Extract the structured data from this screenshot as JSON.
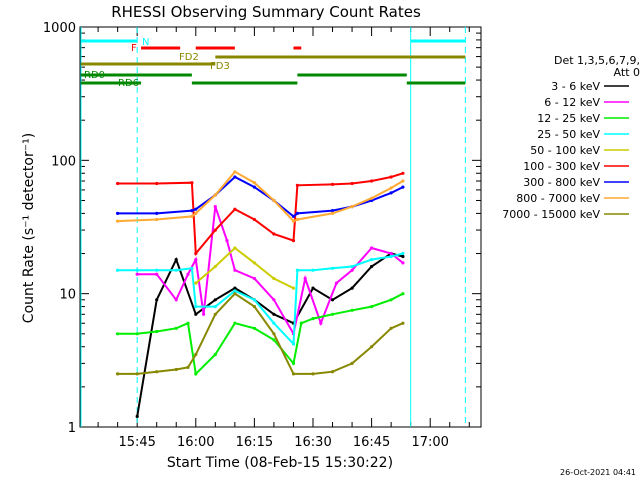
{
  "chart_data": {
    "type": "line",
    "title": "RHESSI Observing Summary Count Rates",
    "xlabel": "Start Time (08-Feb-15 15:30:22)",
    "ylabel": "Count Rate (s⁻¹ detector⁻¹)",
    "yscale": "log",
    "ylim": [
      1,
      1000
    ],
    "xlim": [
      "15:30:22",
      "17:13:00"
    ],
    "x_ticks": [
      "15:45",
      "16:00",
      "16:15",
      "16:30",
      "16:45",
      "17:00"
    ],
    "y_ticks": [
      "1",
      "10",
      "100",
      "1000"
    ],
    "legend_position": "right",
    "legend_header": [
      "Det 1,3,5,6,7,9,",
      "Att 0"
    ],
    "series": [
      {
        "name": "3 - 6 keV",
        "color": "#000000",
        "points": [
          [
            "15:45",
            1.2
          ],
          [
            "15:50",
            9
          ],
          [
            "15:55",
            18
          ],
          [
            "16:00",
            7
          ],
          [
            "16:05",
            9
          ],
          [
            "16:10",
            11
          ],
          [
            "16:15",
            9
          ],
          [
            "16:20",
            7
          ],
          [
            "16:25",
            6
          ],
          [
            "16:30",
            11
          ],
          [
            "16:35",
            9
          ],
          [
            "16:40",
            11
          ],
          [
            "16:45",
            16
          ],
          [
            "16:50",
            20
          ],
          [
            "16:53",
            19
          ]
        ]
      },
      {
        "name": "6 - 12 keV",
        "color": "#ff00ff",
        "points": [
          [
            "15:45",
            14
          ],
          [
            "15:50",
            14
          ],
          [
            "15:55",
            9
          ],
          [
            "15:58",
            14
          ],
          [
            "16:00",
            18
          ],
          [
            "16:02",
            7
          ],
          [
            "16:05",
            45
          ],
          [
            "16:08",
            25
          ],
          [
            "16:10",
            15
          ],
          [
            "16:15",
            13
          ],
          [
            "16:20",
            9
          ],
          [
            "16:25",
            5
          ],
          [
            "16:28",
            13
          ],
          [
            "16:32",
            6
          ],
          [
            "16:36",
            12
          ],
          [
            "16:40",
            15
          ],
          [
            "16:45",
            22
          ],
          [
            "16:50",
            20
          ],
          [
            "16:53",
            17
          ]
        ]
      },
      {
        "name": "12 - 25 keV",
        "color": "#00ee00",
        "points": [
          [
            "15:40",
            5
          ],
          [
            "15:45",
            5
          ],
          [
            "15:50",
            5.2
          ],
          [
            "15:55",
            5.5
          ],
          [
            "15:58",
            6
          ],
          [
            "16:00",
            2.5
          ],
          [
            "16:05",
            3.5
          ],
          [
            "16:10",
            6
          ],
          [
            "16:15",
            5.5
          ],
          [
            "16:20",
            4.5
          ],
          [
            "16:25",
            3
          ],
          [
            "16:27",
            6
          ],
          [
            "16:30",
            6.5
          ],
          [
            "16:35",
            7
          ],
          [
            "16:40",
            7.5
          ],
          [
            "16:45",
            8
          ],
          [
            "16:50",
            9
          ],
          [
            "16:53",
            10
          ]
        ]
      },
      {
        "name": "25 - 50 keV",
        "color": "#00ffff",
        "points": [
          [
            "15:40",
            15
          ],
          [
            "15:45",
            15
          ],
          [
            "15:50",
            15
          ],
          [
            "15:55",
            15
          ],
          [
            "15:59",
            15.5
          ],
          [
            "16:00",
            8
          ],
          [
            "16:05",
            8
          ],
          [
            "16:10",
            10.5
          ],
          [
            "16:15",
            9
          ],
          [
            "16:20",
            6
          ],
          [
            "16:25",
            4.2
          ],
          [
            "16:26",
            15
          ],
          [
            "16:30",
            15
          ],
          [
            "16:35",
            15.5
          ],
          [
            "16:40",
            16
          ],
          [
            "16:45",
            18
          ],
          [
            "16:50",
            19
          ],
          [
            "16:53",
            20
          ]
        ]
      },
      {
        "name": "50 - 100 keV",
        "color": "#cccc00",
        "points": [
          [
            "16:00",
            12
          ],
          [
            "16:05",
            16
          ],
          [
            "16:10",
            22
          ],
          [
            "16:15",
            17
          ],
          [
            "16:20",
            13
          ],
          [
            "16:25",
            11
          ]
        ]
      },
      {
        "name": "100 - 300 keV",
        "color": "#ff0000",
        "points": [
          [
            "15:40",
            67
          ],
          [
            "15:50",
            67
          ],
          [
            "15:59",
            68
          ],
          [
            "16:00",
            20
          ],
          [
            "16:05",
            30
          ],
          [
            "16:10",
            43
          ],
          [
            "16:15",
            36
          ],
          [
            "16:20",
            28
          ],
          [
            "16:25",
            25
          ],
          [
            "16:26",
            65
          ],
          [
            "16:35",
            66
          ],
          [
            "16:40",
            67
          ],
          [
            "16:45",
            70
          ],
          [
            "16:50",
            75
          ],
          [
            "16:53",
            80
          ]
        ]
      },
      {
        "name": "300 - 800 keV",
        "color": "#0000ff",
        "points": [
          [
            "15:40",
            40
          ],
          [
            "15:50",
            40
          ],
          [
            "15:59",
            42
          ],
          [
            "16:00",
            43
          ],
          [
            "16:05",
            55
          ],
          [
            "16:10",
            75
          ],
          [
            "16:15",
            63
          ],
          [
            "16:20",
            50
          ],
          [
            "16:25",
            38
          ],
          [
            "16:26",
            40
          ],
          [
            "16:35",
            42
          ],
          [
            "16:40",
            45
          ],
          [
            "16:45",
            50
          ],
          [
            "16:50",
            57
          ],
          [
            "16:53",
            63
          ]
        ]
      },
      {
        "name": "800 - 7000 keV",
        "color": "#ffaa33",
        "points": [
          [
            "15:40",
            35
          ],
          [
            "15:50",
            36
          ],
          [
            "15:59",
            38
          ],
          [
            "16:00",
            40
          ],
          [
            "16:05",
            55
          ],
          [
            "16:10",
            82
          ],
          [
            "16:15",
            68
          ],
          [
            "16:20",
            50
          ],
          [
            "16:25",
            35
          ],
          [
            "16:26",
            36
          ],
          [
            "16:35",
            40
          ],
          [
            "16:40",
            45
          ],
          [
            "16:45",
            52
          ],
          [
            "16:50",
            62
          ],
          [
            "16:53",
            70
          ]
        ]
      },
      {
        "name": "7000 - 15000 keV",
        "color": "#888800",
        "points": [
          [
            "15:40",
            2.5
          ],
          [
            "15:45",
            2.5
          ],
          [
            "15:50",
            2.6
          ],
          [
            "15:55",
            2.7
          ],
          [
            "15:58",
            2.8
          ],
          [
            "16:00",
            3.5
          ],
          [
            "16:05",
            7
          ],
          [
            "16:10",
            10
          ],
          [
            "16:15",
            8
          ],
          [
            "16:20",
            5
          ],
          [
            "16:25",
            2.5
          ],
          [
            "16:30",
            2.5
          ],
          [
            "16:35",
            2.6
          ],
          [
            "16:40",
            3
          ],
          [
            "16:45",
            4
          ],
          [
            "16:50",
            5.5
          ],
          [
            "16:53",
            6
          ]
        ]
      }
    ],
    "flag_bars": [
      {
        "label": "N",
        "color": "#00ffff",
        "segments": [
          [
            "15:30",
            "15:45"
          ],
          [
            "16:55",
            "17:09"
          ]
        ]
      },
      {
        "label": "F",
        "color": "#ff0000",
        "segments": [
          [
            "15:46",
            "15:56"
          ],
          [
            "16:00",
            "16:10"
          ],
          [
            "16:25",
            "16:27"
          ]
        ]
      },
      {
        "label": "FD2",
        "color": "#888800",
        "segments": [
          [
            "16:05",
            "17:09"
          ]
        ]
      },
      {
        "label": "FD3",
        "color": "#888800",
        "segments": [
          [
            "15:30",
            "16:05"
          ]
        ]
      },
      {
        "label": "RD0",
        "color": "#008800",
        "segments": [
          [
            "15:30",
            "15:59"
          ],
          [
            "16:26",
            "16:54"
          ]
        ]
      },
      {
        "label": "RD6",
        "color": "#008800",
        "segments": [
          [
            "15:30",
            "15:46"
          ],
          [
            "15:59",
            "16:26"
          ],
          [
            "16:54",
            "17:09"
          ]
        ]
      }
    ],
    "vertical_markers": [
      {
        "time": "15:30",
        "style": "solid",
        "color": "#00ffff"
      },
      {
        "time": "15:45",
        "style": "dashed",
        "color": "#00ffff"
      },
      {
        "time": "16:55",
        "style": "solid",
        "color": "#00ffff"
      },
      {
        "time": "17:09",
        "style": "dashed",
        "color": "#00ffff"
      }
    ]
  },
  "footer_timestamp": "26-Oct-2021 04:41"
}
